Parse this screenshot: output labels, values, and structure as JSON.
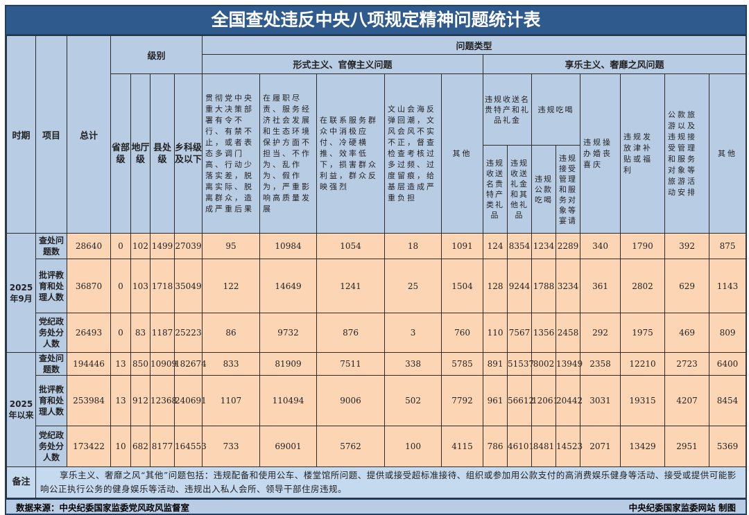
{
  "title": "全国查处违反中央八项规定精神问题统计表",
  "header": {
    "period": "时期",
    "item": "项目",
    "total": "总计",
    "level": "级别",
    "problem_type": "问题类型",
    "levels": [
      "省部级",
      "地厅级",
      "县处级",
      "乡科级及以下"
    ],
    "formalism": "形式主义、官僚主义问题",
    "hedonism": "享乐主义、奢靡之风问题",
    "formalism_cols": [
      "贯彻党中央重大决策部署有令不行、有禁不止，或者表态多调门高、行动少落实差，脱离实际、脱离群众，造成严重后果",
      "在履职尽责、服务经济社会发展和生态环境保护方面不担当、不作为、乱作为、假作为，严重影响高质量发展",
      "在联系服务群众中消极应付、冷硬横推、效率低下，损害群众利益，群众反映强烈",
      "文山会海反弹回潮，文风会风不实不正，督查检查考核过多过频、过度留痕，给基层造成严重负担",
      "其他"
    ],
    "gifts": "违规收送名贵特产和礼品礼金",
    "gifts_sub": [
      "违规收送名贵特产类礼品",
      "违规收送礼金和其他礼品"
    ],
    "dining": "违规吃喝",
    "dining_sub": [
      "违规公款吃喝",
      "违规接受管理和服务对象等宴请"
    ],
    "hedonism_cols": [
      "违规操办婚丧喜庆",
      "违规发放津补贴或福利",
      "公款旅游以及违规接受管理和服务对象等旅游活动安排",
      "其他"
    ]
  },
  "periods": [
    {
      "label": "2025年9月",
      "rows": [
        {
          "item": "查处问题数",
          "values": [
            "28640",
            "0",
            "102",
            "1499",
            "27039",
            "95",
            "10984",
            "1054",
            "18",
            "1091",
            "124",
            "8354",
            "1234",
            "2289",
            "340",
            "1790",
            "392",
            "875"
          ]
        },
        {
          "item": "批评教育和处理人数",
          "values": [
            "36870",
            "0",
            "103",
            "1718",
            "35049",
            "122",
            "14649",
            "1241",
            "25",
            "1504",
            "128",
            "9244",
            "1788",
            "3234",
            "361",
            "2802",
            "629",
            "1143"
          ]
        },
        {
          "item": "党纪政务处分人数",
          "values": [
            "26493",
            "0",
            "83",
            "1187",
            "25223",
            "86",
            "9732",
            "876",
            "3",
            "760",
            "110",
            "7567",
            "1356",
            "2458",
            "292",
            "1975",
            "469",
            "809"
          ]
        }
      ]
    },
    {
      "label": "2025年以来",
      "rows": [
        {
          "item": "查处问题数",
          "values": [
            "194446",
            "13",
            "850",
            "10909",
            "182674",
            "833",
            "81909",
            "7511",
            "338",
            "5785",
            "891",
            "51537",
            "8002",
            "13949",
            "2358",
            "12210",
            "2723",
            "6400"
          ]
        },
        {
          "item": "批评教育和处理人数",
          "values": [
            "253984",
            "13",
            "912",
            "12368",
            "240691",
            "1107",
            "110494",
            "9006",
            "502",
            "7792",
            "961",
            "56612",
            "12061",
            "20442",
            "3031",
            "19315",
            "4207",
            "8454"
          ]
        },
        {
          "item": "党纪政务处分人数",
          "values": [
            "173422",
            "10",
            "682",
            "8177",
            "164553",
            "733",
            "69001",
            "5762",
            "100",
            "4115",
            "786",
            "46101",
            "8481",
            "14523",
            "2071",
            "13429",
            "2951",
            "5369"
          ]
        }
      ]
    }
  ],
  "note": {
    "label": "备注",
    "text": "享乐主义、奢靡之风“其他”问题包括：违规配备和使用公车、楼堂馆所问题、提供或接受超标准接待、组织或参加用公款支付的高消费娱乐健身等活动、接受或提供可能影响公正执行公务的健身娱乐等活动、违规出入私人会所、领导干部住房违规。"
  },
  "footer": {
    "source": "数据来源：中央纪委国家监委党风政风监督室",
    "maker": "中央纪委国家监委网站 制图"
  },
  "colors": {
    "title_bg": "#2f5a8e",
    "header_bg": "#b8cce4",
    "data_bg": "#fcd5b4"
  }
}
